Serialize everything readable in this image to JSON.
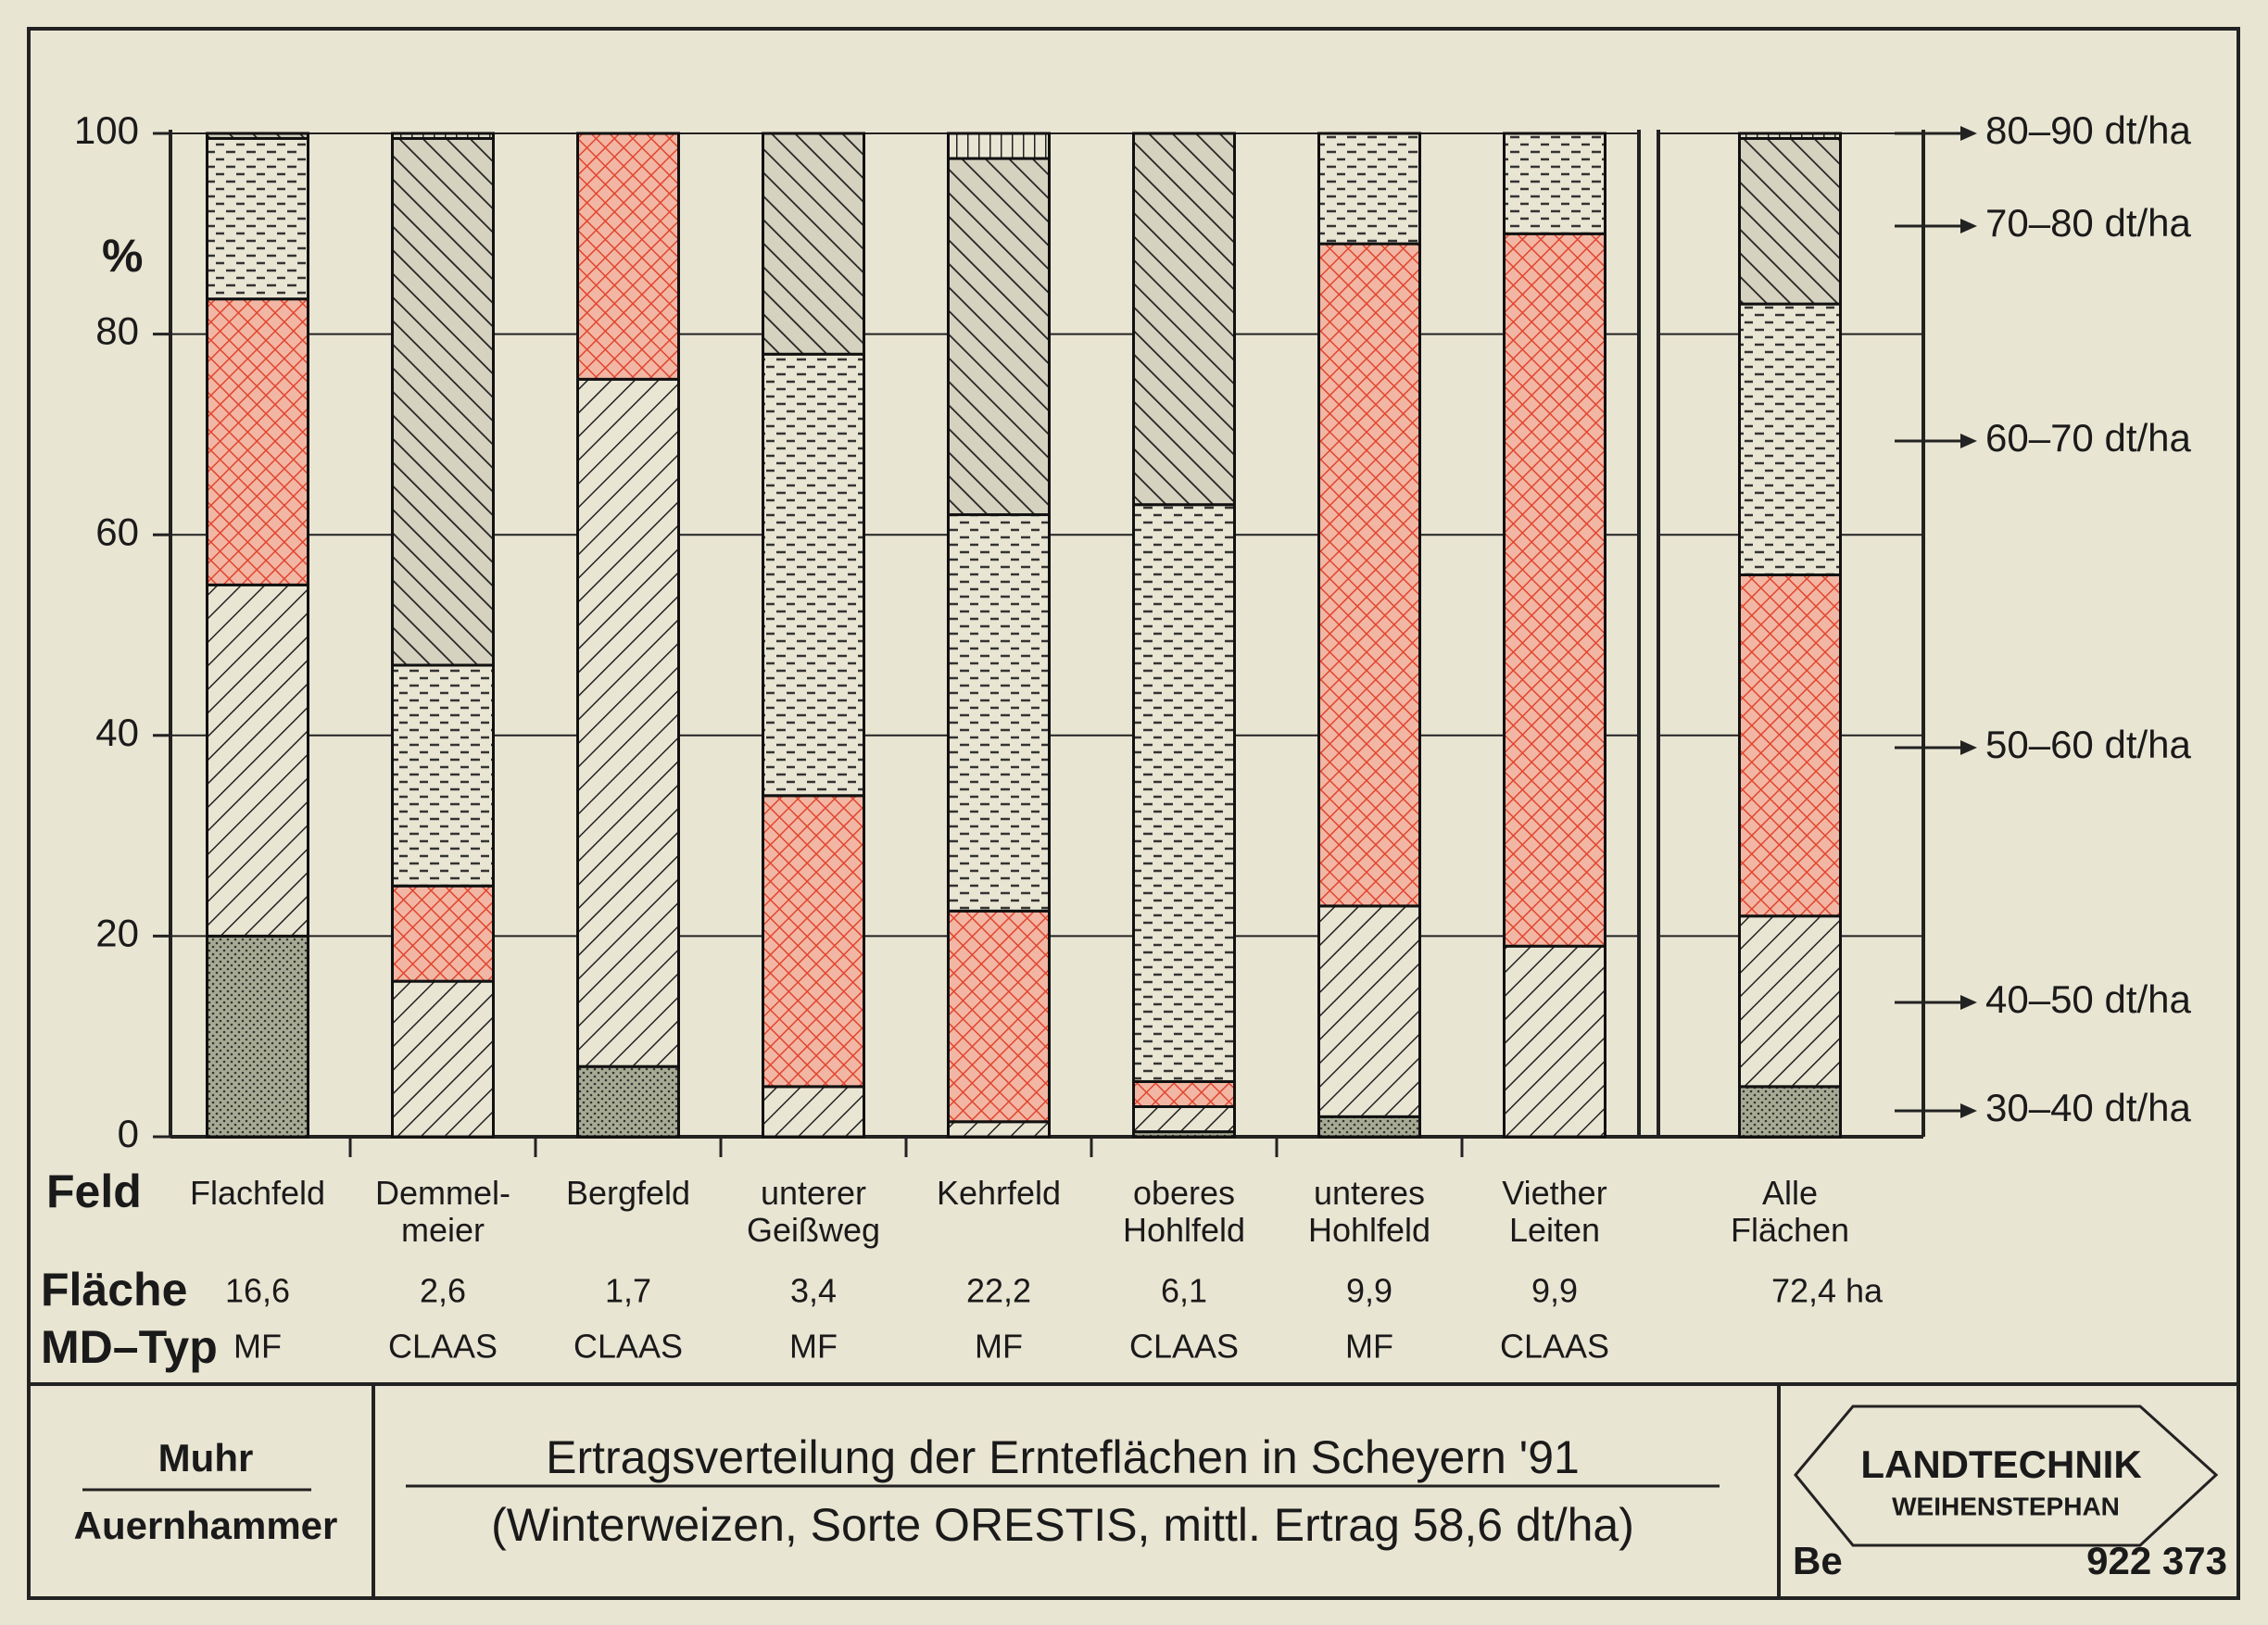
{
  "chart_data": {
    "type": "stacked_bar",
    "title": "Ertragsverteilung der Ernteflächen in Scheyern '91",
    "subtitle": "(Winterweizen, Sorte ORESTIS, mittl. Ertrag 58,6 dt/ha)",
    "y_label": "%",
    "categories": [
      "Flachfeld",
      "Demmel-\nmeier",
      "Bergfeld",
      "unterer\nGeißweg",
      "Kehrfeld",
      "oberes\nHohlfeld",
      "unteres\nHohlfeld",
      "Viether\nLeiten",
      "Alle\nFlächen"
    ],
    "category_row_label": "Feld",
    "area_row_label": "Fläche",
    "areas": [
      "16,6",
      "2,6",
      "1,7",
      "3,4",
      "22,2",
      "6,1",
      "9,9",
      "9,9",
      "72,4 ha"
    ],
    "type_row_label": "MD–Typ",
    "machine_types": [
      "MF",
      "CLAAS",
      "CLAAS",
      "MF",
      "MF",
      "CLAAS",
      "MF",
      "CLAAS",
      null
    ],
    "series": [
      {
        "name": "30–40 dt/ha",
        "color": "#a7ab94",
        "values": [
          20,
          0,
          7,
          0,
          0,
          0.5,
          2,
          0,
          5
        ]
      },
      {
        "name": "40–50 dt/ha",
        "color": "#222222",
        "values": [
          35,
          15.5,
          68.5,
          5,
          1.5,
          2.5,
          21,
          19,
          17
        ]
      },
      {
        "name": "50–60 dt/ha",
        "color": "#e2452f",
        "values": [
          28.5,
          9.5,
          24.5,
          29,
          21,
          2.5,
          66,
          71,
          34
        ]
      },
      {
        "name": "60–70 dt/ha",
        "color": "#333333",
        "values": [
          16,
          22,
          0,
          44,
          39.5,
          57.5,
          11,
          10,
          27
        ]
      },
      {
        "name": "70–80 dt/ha",
        "color": "#222222",
        "values": [
          0.5,
          52.5,
          0,
          22,
          35.5,
          37,
          0,
          0,
          16.5
        ]
      },
      {
        "name": "80–90 dt/ha",
        "color": "#222222",
        "values": [
          0,
          0.5,
          0,
          0,
          2.5,
          0,
          0,
          0,
          0.5
        ]
      }
    ],
    "ylim": [
      0,
      100
    ],
    "yticks": [
      0,
      20,
      40,
      60,
      80,
      100
    ],
    "grid": true
  },
  "footer": {
    "authors": [
      "Muhr",
      "Auernhammer"
    ],
    "logo": [
      "LANDTECHNIK",
      "WEIHENSTEPHAN"
    ],
    "code": "Be",
    "number": "922 373"
  }
}
